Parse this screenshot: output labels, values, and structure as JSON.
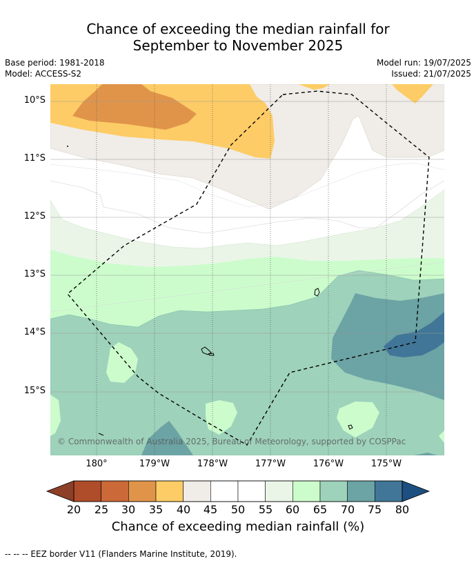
{
  "title": {
    "line1": "Chance of exceeding the median rainfall for",
    "line2": "September to November 2025"
  },
  "meta": {
    "base_period": "Base period: 1981-2018",
    "model": "Model: ACCESS-S2",
    "model_run": "Model run: 19/07/2025",
    "issued": "Issued: 21/07/2025"
  },
  "map": {
    "lat_labels": [
      "10°S",
      "11°S",
      "12°S",
      "13°S",
      "14°S",
      "15°S"
    ],
    "lon_labels": [
      "180°",
      "179°W",
      "178°W",
      "177°W",
      "176°W",
      "175°W"
    ],
    "copyright": "© Commonwealth of Australia 2025, Bureau of Meteorology, supported by COSPPac",
    "colors": {
      "c30_35": "#e0944a",
      "c35_40": "#fdcc66",
      "c40_45": "#f0ece7",
      "c45_55": "#ffffff",
      "c55_60": "#eaf5e8",
      "c60_65": "#ccfccc",
      "c65_70": "#9ed2bb",
      "c70_75": "#6ca3a4",
      "c75_80": "#417698"
    }
  },
  "colorbar": {
    "ticks": [
      "20",
      "25",
      "30",
      "35",
      "40",
      "45",
      "50",
      "55",
      "60",
      "65",
      "70",
      "75",
      "80"
    ],
    "colors": [
      "#af4c2a",
      "#cb6938",
      "#e0944a",
      "#fdcc66",
      "#f0ece7",
      "#ffffff",
      "#ffffff",
      "#eaf5e8",
      "#ccfccc",
      "#9ed2bb",
      "#6ca3a4",
      "#417698"
    ],
    "under_color": "#8e3f27",
    "over_color": "#1d4f80",
    "label": "Chance of exceeding median rainfall (%)"
  },
  "footnote": "--  --  -- EEZ border V11 (Flanders Marine Institute, 2019)."
}
